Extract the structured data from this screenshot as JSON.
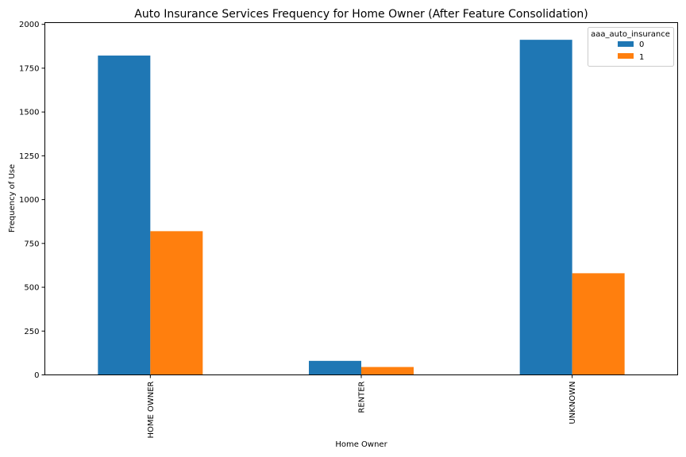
{
  "chart_data": {
    "type": "bar",
    "title": "Auto Insurance Services Frequency for Home Owner (After Feature Consolidation)",
    "xlabel": "Home Owner",
    "ylabel": "Frequency of Use",
    "categories": [
      "HOME OWNER",
      "RENTER",
      "UNKNOWN"
    ],
    "series": [
      {
        "name": "0",
        "values": [
          1822,
          80,
          1912
        ],
        "color": "#1f77b4"
      },
      {
        "name": "1",
        "values": [
          820,
          45,
          580
        ],
        "color": "#ff7f0e"
      }
    ],
    "ylim": [
      0,
      2010
    ],
    "yticks": [
      0,
      250,
      500,
      750,
      1000,
      1250,
      1500,
      1750,
      2000
    ],
    "ytick_labels": [
      "0",
      "250",
      "500",
      "750",
      "1000",
      "1250",
      "1500",
      "1750",
      "2000"
    ],
    "grid": false,
    "legend": {
      "title": "aaa_auto_insurance",
      "placement": "top-right"
    }
  }
}
